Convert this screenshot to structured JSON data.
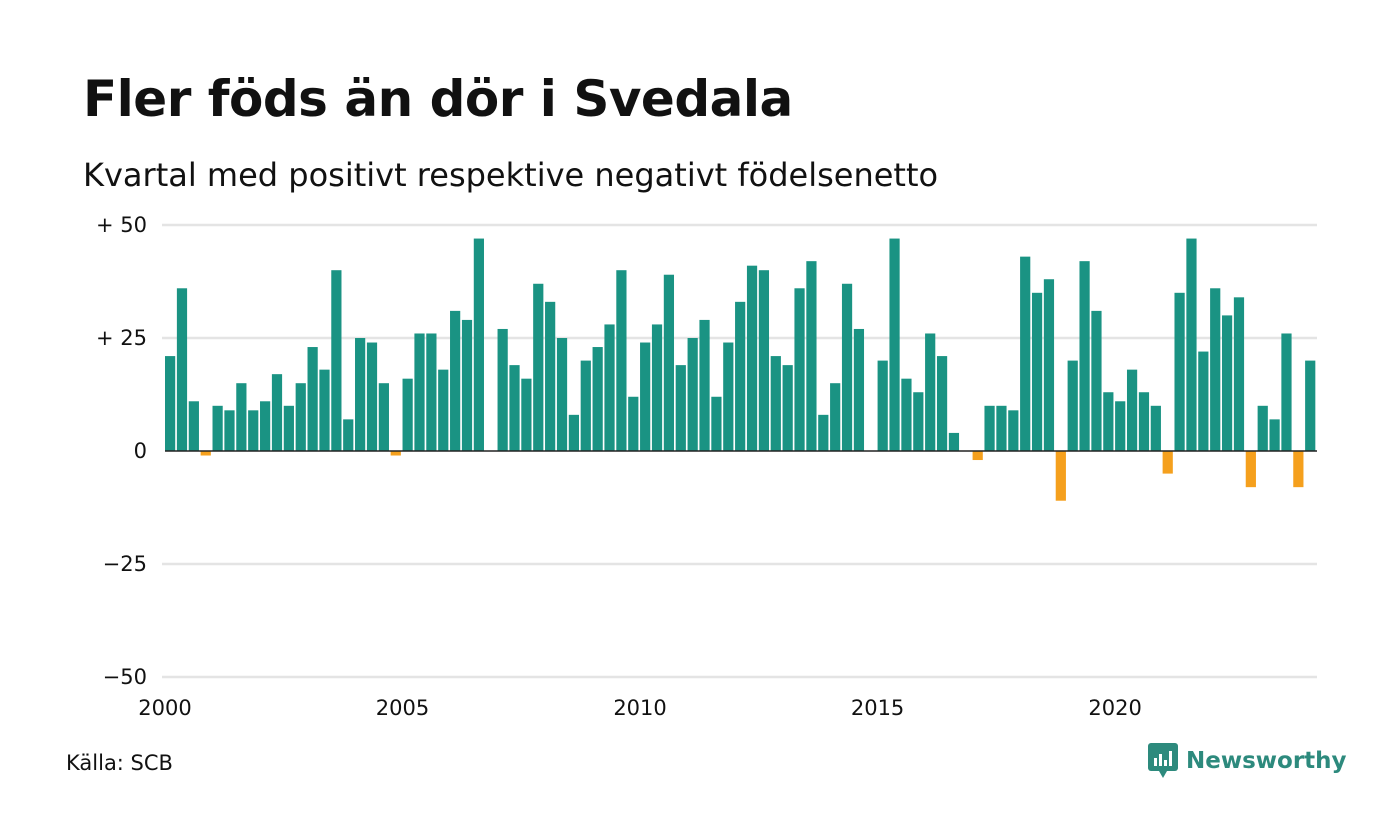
{
  "title": "Fler föds än dör i Svedala",
  "subtitle": "Kvartal med positivt respektive negativt födelsenetto",
  "source": "Källa: SCB",
  "brand": "Newsworthy",
  "colors": {
    "positive": "#1a9383",
    "negative": "#f5a01d",
    "grid": "#e4e4e4",
    "axis": "#222222"
  },
  "chart_data": {
    "type": "bar",
    "x_start": 2000,
    "x_unit": "quarter",
    "values": [
      21,
      36,
      11,
      -1,
      10,
      9,
      15,
      9,
      11,
      17,
      10,
      15,
      23,
      18,
      40,
      7,
      25,
      24,
      15,
      -1,
      16,
      26,
      26,
      18,
      31,
      29,
      47,
      null,
      27,
      19,
      16,
      37,
      33,
      25,
      8,
      20,
      23,
      28,
      40,
      12,
      24,
      28,
      39,
      19,
      25,
      29,
      12,
      24,
      33,
      41,
      40,
      21,
      19,
      36,
      42,
      8,
      15,
      37,
      27,
      null,
      20,
      47,
      16,
      13,
      26,
      21,
      4,
      null,
      -2,
      10,
      10,
      9,
      43,
      35,
      38,
      -11,
      20,
      42,
      31,
      13,
      11,
      18,
      13,
      10,
      -5,
      35,
      47,
      22,
      36,
      30,
      34,
      -8,
      10,
      7,
      26,
      -8,
      20
    ],
    "y_ticks": [
      {
        "value": 50,
        "label": "+ 50"
      },
      {
        "value": 25,
        "label": "+ 25"
      },
      {
        "value": 0,
        "label": "0"
      },
      {
        "value": -25,
        "label": "−25"
      },
      {
        "value": -50,
        "label": "−50"
      }
    ],
    "x_ticks": [
      {
        "value": 2000,
        "label": "2000"
      },
      {
        "value": 2005,
        "label": "2005"
      },
      {
        "value": 2010,
        "label": "2010"
      },
      {
        "value": 2015,
        "label": "2015"
      },
      {
        "value": 2020,
        "label": "2020"
      }
    ],
    "ylim": [
      -50,
      50
    ],
    "grid": true,
    "legend": "none"
  }
}
